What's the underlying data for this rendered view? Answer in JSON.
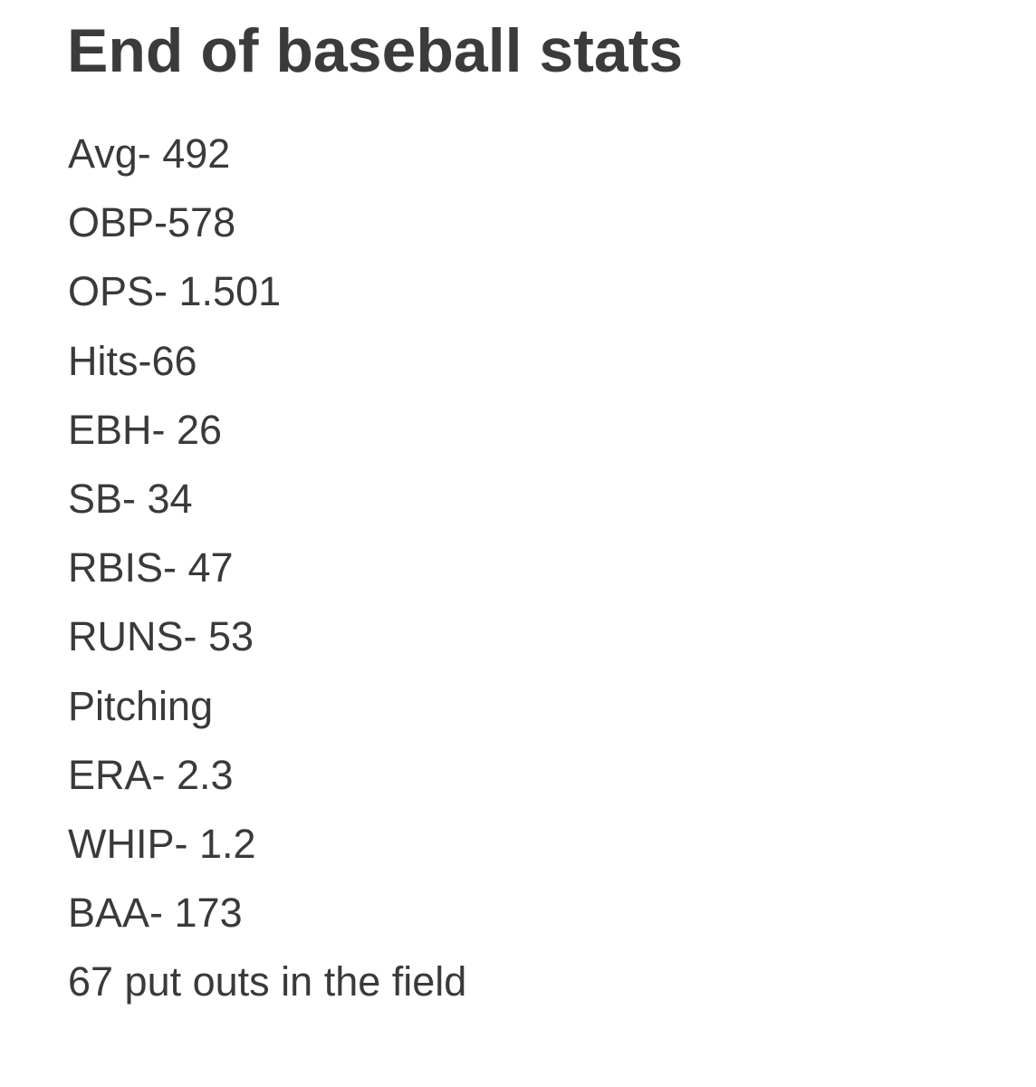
{
  "note": {
    "title": "End of baseball stats",
    "lines": [
      "Avg- 492",
      "OBP-578",
      "OPS- 1.501",
      "Hits-66",
      "EBH- 26",
      "SB- 34",
      "RBIS- 47",
      "RUNS- 53",
      "Pitching",
      "ERA- 2.3",
      "WHIP- 1.2",
      "BAA- 173",
      "67 put outs in the field"
    ]
  }
}
